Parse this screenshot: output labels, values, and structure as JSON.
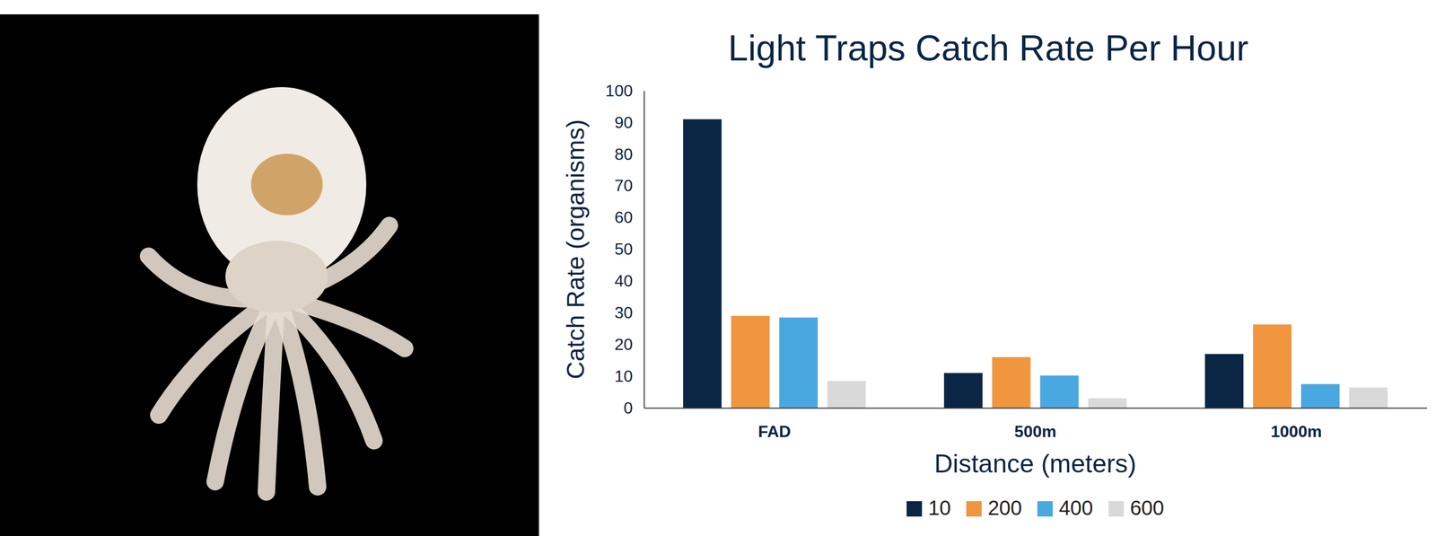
{
  "chart_data": {
    "type": "bar",
    "title": "Light Traps Catch Rate Per Hour",
    "x_label": "Distance (meters)",
    "y_label": "Catch Rate (organisms)",
    "categories": [
      "FAD",
      "500m",
      "1000m"
    ],
    "series": [
      {
        "name": "10",
        "color": "#0b2545",
        "values": [
          91,
          11,
          17
        ]
      },
      {
        "name": "200",
        "color": "#f0963f",
        "values": [
          29,
          16,
          26.3
        ]
      },
      {
        "name": "400",
        "color": "#4aa8e0",
        "values": [
          28.5,
          10.2,
          7.5
        ]
      },
      {
        "name": "600",
        "color": "#d9d9d9",
        "values": [
          8.5,
          3,
          6.4
        ]
      }
    ],
    "ylim": [
      0,
      100
    ],
    "yticks": [
      0,
      10,
      20,
      30,
      40,
      50,
      60,
      70,
      80,
      90,
      100
    ],
    "grid": false,
    "legend": "bottom"
  }
}
